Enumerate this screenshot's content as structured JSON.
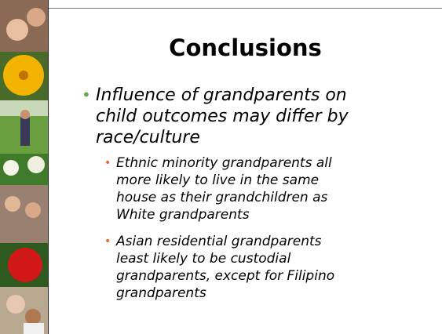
{
  "title": "Conclusions",
  "bullets": [
    {
      "lines": [
        "Influence of grandparents on",
        "child outcomes may differ by",
        "race/culture"
      ],
      "sub_bullets": [
        {
          "lines": [
            "Ethnic minority grandparents all",
            "more likely to live in the same",
            "house as their grandchildren as",
            "White grandparents"
          ]
        },
        {
          "lines": [
            "Asian residential grandparents",
            "least likely to be custodial",
            "grandparents, except for Filipino",
            "grandparents"
          ]
        }
      ]
    }
  ]
}
